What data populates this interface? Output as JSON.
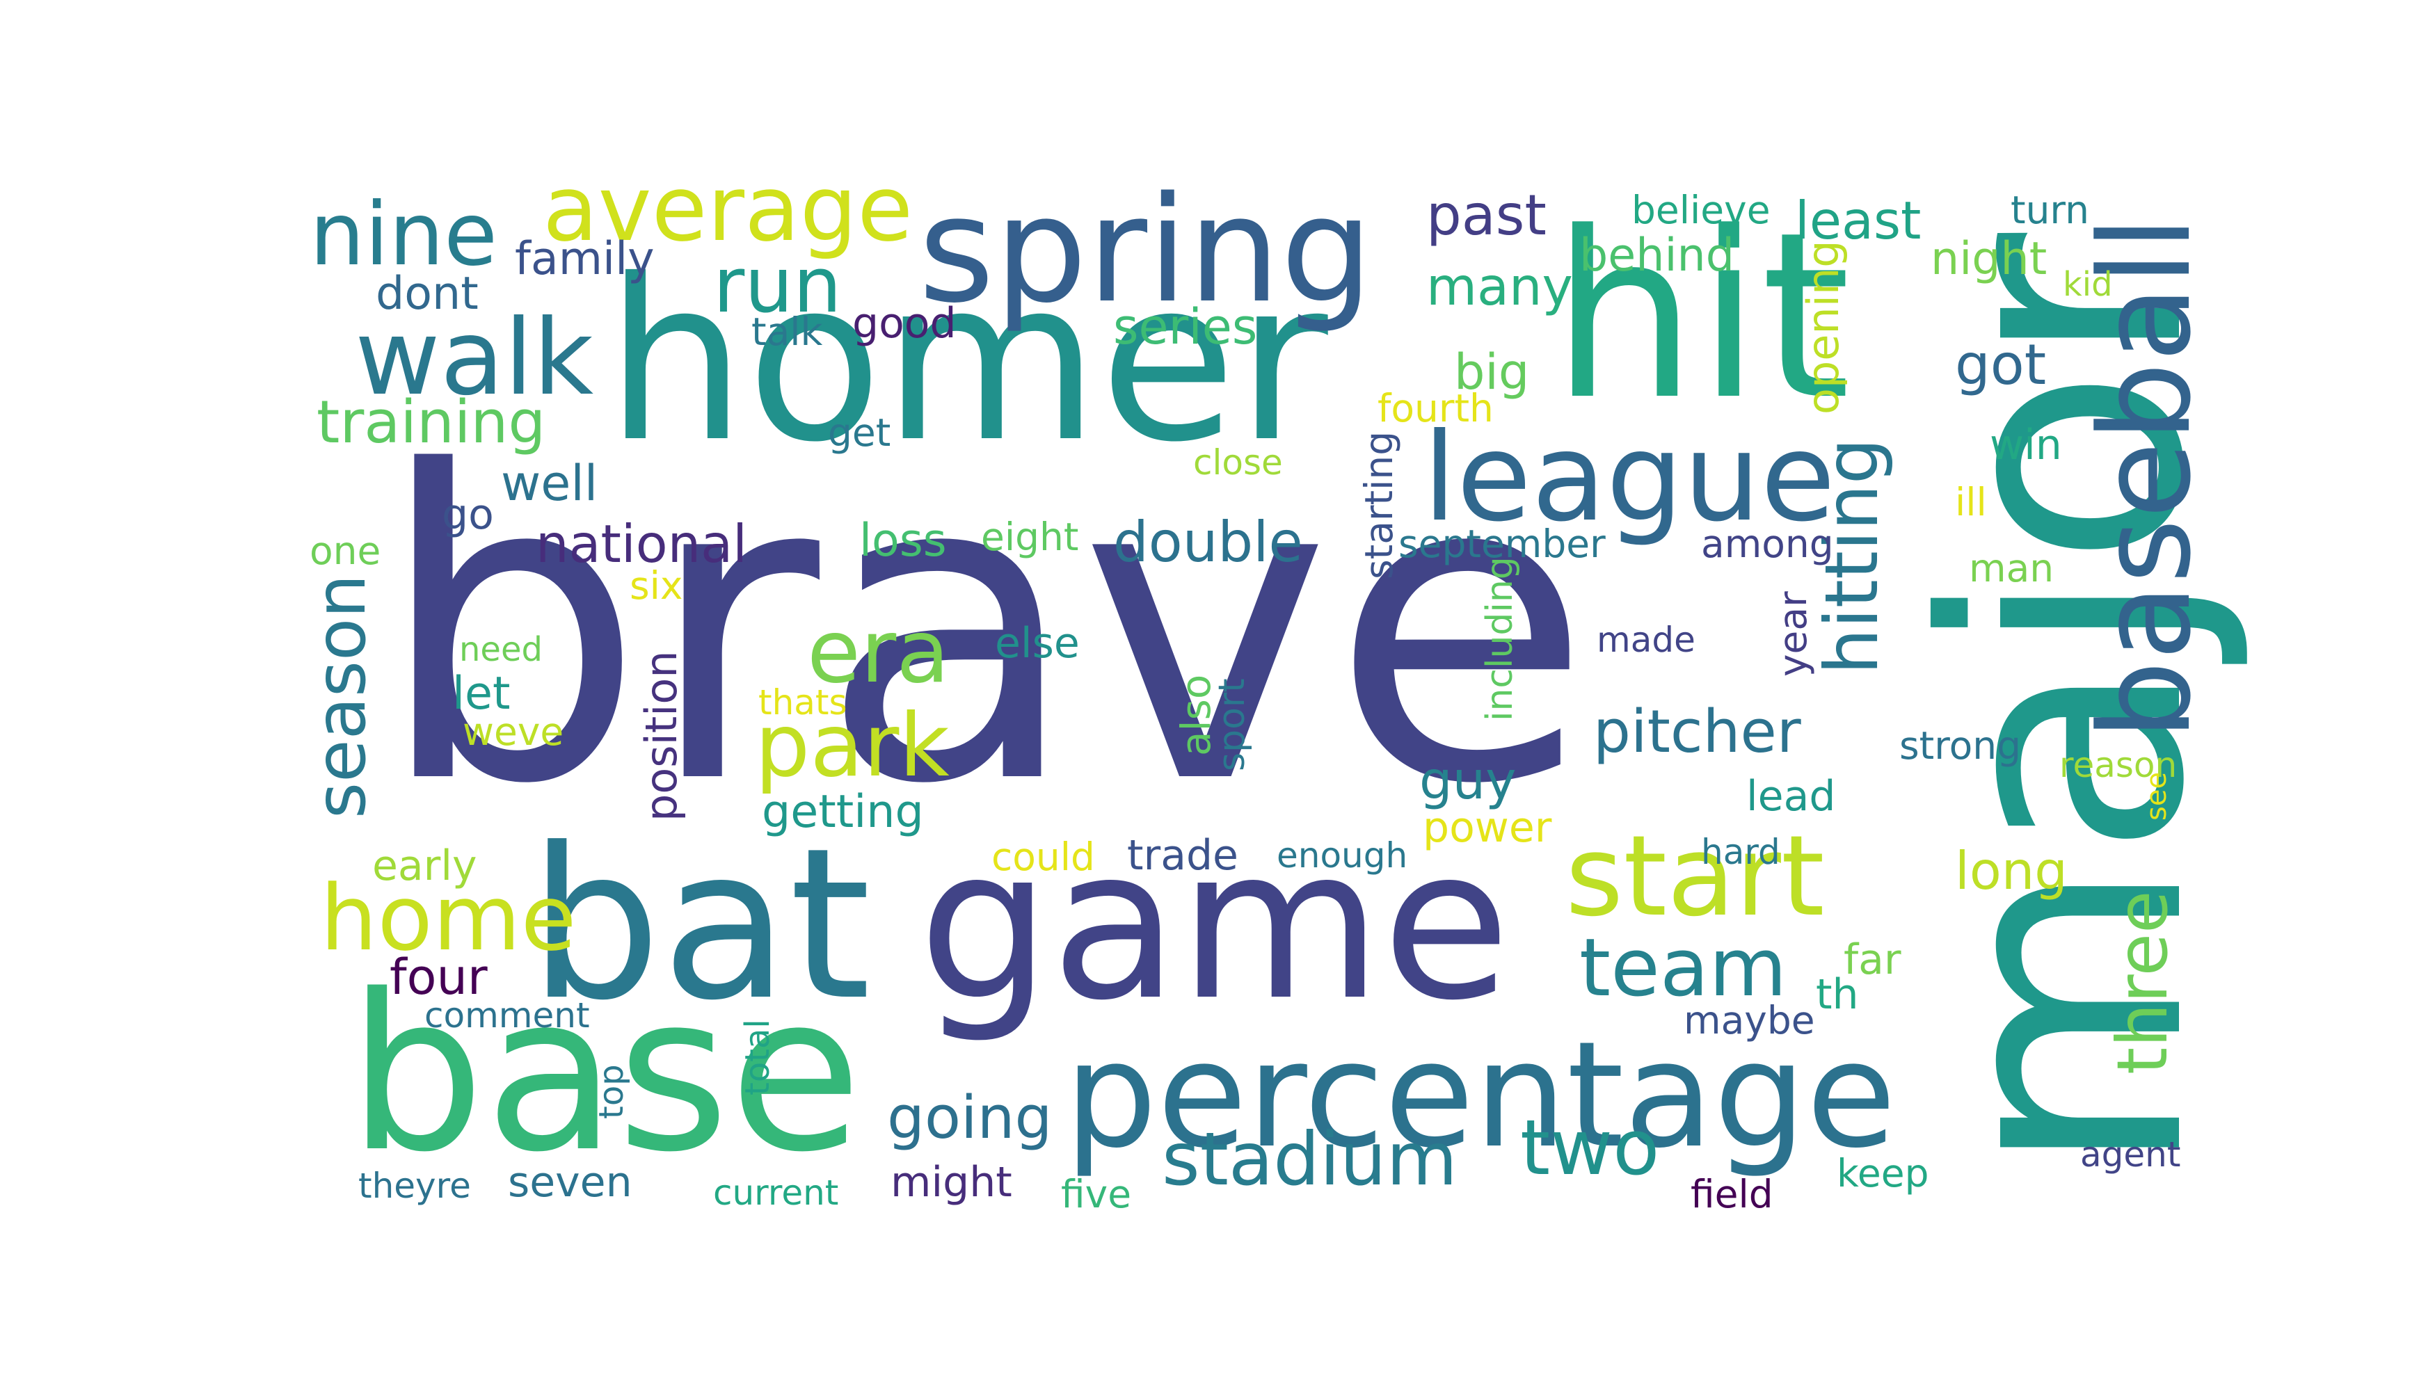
{
  "words": [
    {
      "key": "brave",
      "text": "brave",
      "color": "#414487"
    },
    {
      "key": "homer",
      "text": "homer",
      "color": "#21918c"
    },
    {
      "key": "hit",
      "text": "hit",
      "color": "#22a884"
    },
    {
      "key": "spring",
      "text": "spring",
      "color": "#355f8d"
    },
    {
      "key": "major",
      "text": "major",
      "color": "#1f988b"
    },
    {
      "key": "bat",
      "text": "bat",
      "color": "#2a788e"
    },
    {
      "key": "game",
      "text": "game",
      "color": "#414487"
    },
    {
      "key": "base",
      "text": "base",
      "color": "#35b779"
    },
    {
      "key": "percentage",
      "text": "percentage",
      "color": "#2c728e"
    },
    {
      "key": "league",
      "text": "league",
      "color": "#31688e"
    },
    {
      "key": "baseball",
      "text": "baseball",
      "color": "#33638d"
    },
    {
      "key": "start",
      "text": "start",
      "color": "#bddf26"
    },
    {
      "key": "average",
      "text": "average",
      "color": "#d0e11c"
    },
    {
      "key": "walk",
      "text": "walk",
      "color": "#2a788e"
    },
    {
      "key": "nine",
      "text": "nine",
      "color": "#287d8e"
    },
    {
      "key": "run",
      "text": "run",
      "color": "#1f988b"
    },
    {
      "key": "era",
      "text": "era",
      "color": "#7ad151"
    },
    {
      "key": "park",
      "text": "park",
      "color": "#c2df23"
    },
    {
      "key": "home",
      "text": "home",
      "color": "#c8e020"
    },
    {
      "key": "stadium",
      "text": "stadium",
      "color": "#287c8e"
    },
    {
      "key": "two",
      "text": "two",
      "color": "#21918c"
    },
    {
      "key": "team",
      "text": "team",
      "color": "#26828e"
    },
    {
      "key": "season",
      "text": "season",
      "color": "#2a788e"
    },
    {
      "key": "hitting",
      "text": "hitting",
      "color": "#2a768e"
    },
    {
      "key": "three",
      "text": "three",
      "color": "#6ece58"
    },
    {
      "key": "training",
      "text": "training",
      "color": "#5ec962"
    },
    {
      "key": "double",
      "text": "double",
      "color": "#2c728e"
    },
    {
      "key": "national",
      "text": "national",
      "color": "#472d7b"
    },
    {
      "key": "pitcher",
      "text": "pitcher",
      "color": "#2c728e"
    },
    {
      "key": "going",
      "text": "going",
      "color": "#2d708e"
    },
    {
      "key": "well",
      "text": "well",
      "color": "#2c728e"
    },
    {
      "key": "past",
      "text": "past",
      "color": "#433e85"
    },
    {
      "key": "least",
      "text": "least",
      "color": "#20a386"
    },
    {
      "key": "series",
      "text": "series",
      "color": "#3dbc74"
    },
    {
      "key": "many",
      "text": "many",
      "color": "#29af7f"
    },
    {
      "key": "big",
      "text": "big",
      "color": "#65cb5e"
    },
    {
      "key": "got",
      "text": "got",
      "color": "#31688e"
    },
    {
      "key": "family",
      "text": "family",
      "color": "#3b528b"
    },
    {
      "key": "dont",
      "text": "dont",
      "color": "#31688e"
    },
    {
      "key": "good",
      "text": "good",
      "color": "#481f70"
    },
    {
      "key": "talk",
      "text": "talk",
      "color": "#2a788e"
    },
    {
      "key": "behind",
      "text": "behind",
      "color": "#4ac16d"
    },
    {
      "key": "believe",
      "text": "believe",
      "color": "#22a884"
    },
    {
      "key": "turn",
      "text": "turn",
      "color": "#26828e"
    },
    {
      "key": "night",
      "text": "night",
      "color": "#7ad151"
    },
    {
      "key": "kid",
      "text": "kid",
      "color": "#a0da39"
    },
    {
      "key": "opening",
      "text": "opening",
      "color": "#bddf26"
    },
    {
      "key": "fourth",
      "text": "fourth",
      "color": "#e5e419"
    },
    {
      "key": "get",
      "text": "get",
      "color": "#2a788e"
    },
    {
      "key": "close",
      "text": "close",
      "color": "#a0da39"
    },
    {
      "key": "win",
      "text": "win",
      "color": "#22a884"
    },
    {
      "key": "ill",
      "text": "ill",
      "color": "#e5e419"
    },
    {
      "key": "go",
      "text": "go",
      "color": "#3b528b"
    },
    {
      "key": "one",
      "text": "one",
      "color": "#6ece58"
    },
    {
      "key": "loss",
      "text": "loss",
      "color": "#44bf70"
    },
    {
      "key": "eight",
      "text": "eight",
      "color": "#5ec962"
    },
    {
      "key": "starting",
      "text": "starting",
      "color": "#3b528b"
    },
    {
      "key": "september",
      "text": "september",
      "color": "#2a788e"
    },
    {
      "key": "among",
      "text": "among",
      "color": "#414487"
    },
    {
      "key": "man",
      "text": "man",
      "color": "#7ad151"
    },
    {
      "key": "six",
      "text": "six",
      "color": "#e5e419"
    },
    {
      "key": "need",
      "text": "need",
      "color": "#6ece58"
    },
    {
      "key": "else",
      "text": "else",
      "color": "#21918c"
    },
    {
      "key": "made",
      "text": "made",
      "color": "#414487"
    },
    {
      "key": "year",
      "text": "year",
      "color": "#433e85"
    },
    {
      "key": "position",
      "text": "position",
      "color": "#46327e"
    },
    {
      "key": "let",
      "text": "let",
      "color": "#1f988b"
    },
    {
      "key": "weve",
      "text": "weve",
      "color": "#bddf26"
    },
    {
      "key": "thats",
      "text": "thats",
      "color": "#e5e419"
    },
    {
      "key": "also",
      "text": "also",
      "color": "#5ec962"
    },
    {
      "key": "sport",
      "text": "sport",
      "color": "#2a788e"
    },
    {
      "key": "including",
      "text": "including",
      "color": "#5ec962"
    },
    {
      "key": "strong",
      "text": "strong",
      "color": "#2c728e"
    },
    {
      "key": "reason",
      "text": "reason",
      "color": "#a0da39"
    },
    {
      "key": "guy",
      "text": "guy",
      "color": "#26828e"
    },
    {
      "key": "getting",
      "text": "getting",
      "color": "#1f988b"
    },
    {
      "key": "lead",
      "text": "lead",
      "color": "#1f988b"
    },
    {
      "key": "see",
      "text": "see",
      "color": "#e5e419"
    },
    {
      "key": "power",
      "text": "power",
      "color": "#e5e419"
    },
    {
      "key": "early",
      "text": "early",
      "color": "#a0da39"
    },
    {
      "key": "could",
      "text": "could",
      "color": "#e5e419"
    },
    {
      "key": "trade",
      "text": "trade",
      "color": "#3b528b"
    },
    {
      "key": "enough",
      "text": "enough",
      "color": "#2a788e"
    },
    {
      "key": "hard",
      "text": "hard",
      "color": "#2a788e"
    },
    {
      "key": "long",
      "text": "long",
      "color": "#bddf26"
    },
    {
      "key": "four",
      "text": "four",
      "color": "#440154"
    },
    {
      "key": "far",
      "text": "far",
      "color": "#7ad151"
    },
    {
      "key": "comment",
      "text": "comment",
      "color": "#2c728e"
    },
    {
      "key": "th",
      "text": "th",
      "color": "#22a884"
    },
    {
      "key": "maybe",
      "text": "maybe",
      "color": "#3b528b"
    },
    {
      "key": "total",
      "text": "total",
      "color": "#20a386"
    },
    {
      "key": "top",
      "text": "top",
      "color": "#2a788e"
    },
    {
      "key": "agent",
      "text": "agent",
      "color": "#414487"
    },
    {
      "key": "theyre",
      "text": "theyre",
      "color": "#2c728e"
    },
    {
      "key": "seven",
      "text": "seven",
      "color": "#2c728e"
    },
    {
      "key": "current",
      "text": "current",
      "color": "#22a884"
    },
    {
      "key": "might",
      "text": "might",
      "color": "#472d7b"
    },
    {
      "key": "five",
      "text": "five",
      "color": "#35b779"
    },
    {
      "key": "field",
      "text": "field",
      "color": "#440154"
    },
    {
      "key": "keep",
      "text": "keep",
      "color": "#22a884"
    }
  ]
}
